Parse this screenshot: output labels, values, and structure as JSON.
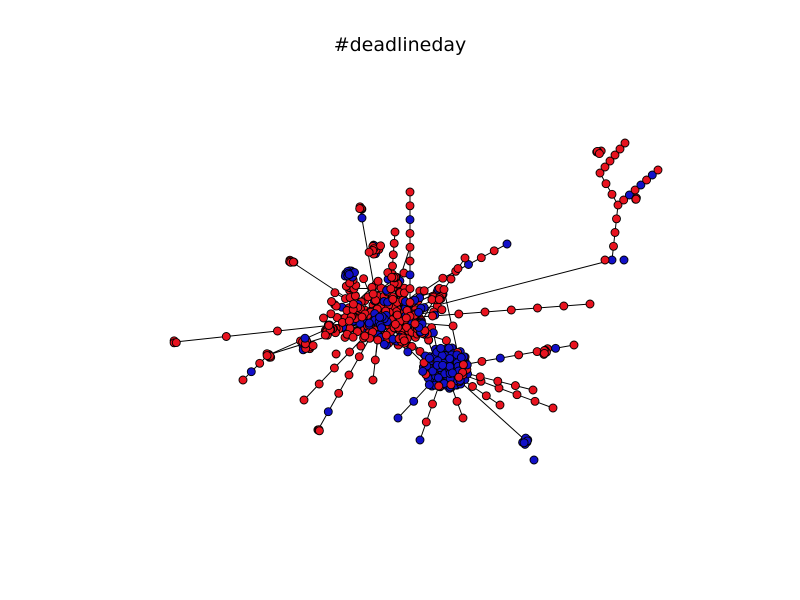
{
  "figure": {
    "title": "#deadlineday",
    "background": "#ffffff"
  },
  "graph": {
    "node_colors": {
      "red": "#e8131f",
      "blue": "#1210c8"
    },
    "node_stroke": "#000000",
    "edge_color": "#000000"
  }
}
